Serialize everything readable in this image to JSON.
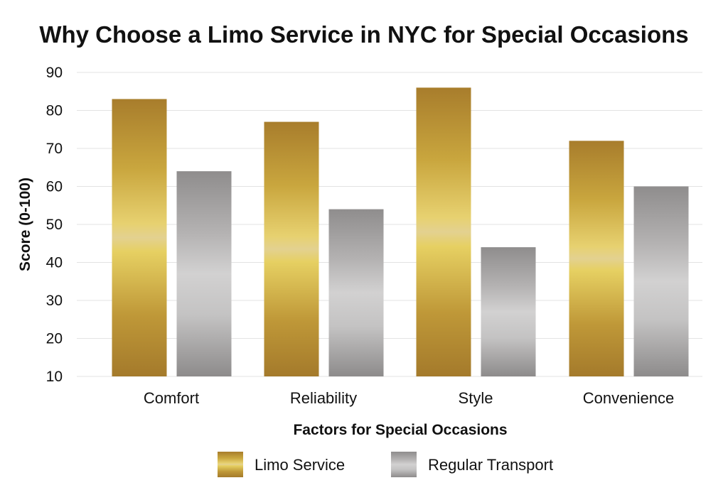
{
  "chart_data": {
    "type": "bar",
    "title": "Why Choose a Limo Service in NYC for Special Occasions",
    "xlabel": "Factors for Special Occasions",
    "ylabel": "Score (0-100)",
    "categories": [
      "Comfort",
      "Reliability",
      "Style",
      "Convenience"
    ],
    "series": [
      {
        "name": "Limo Service",
        "values": [
          83,
          77,
          86,
          72
        ],
        "color": "#c9a834"
      },
      {
        "name": "Regular Transport",
        "values": [
          64,
          54,
          44,
          60
        ],
        "color": "#a8a6a6"
      }
    ],
    "ylim": [
      10,
      90
    ],
    "yticks": [
      "10",
      "20",
      "30",
      "40",
      "50",
      "60",
      "70",
      "80",
      "90"
    ],
    "grid": true,
    "legend": "bottom-center"
  }
}
